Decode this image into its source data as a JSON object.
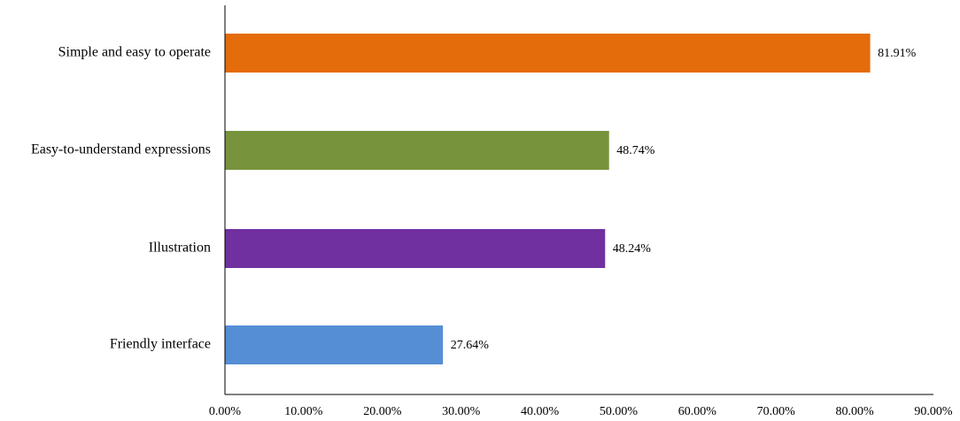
{
  "chart_data": {
    "type": "bar",
    "orientation": "horizontal",
    "categories": [
      "Simple and easy to operate",
      "Easy-to-understand expressions",
      "Illustration",
      "Friendly interface"
    ],
    "values": [
      81.91,
      48.74,
      48.24,
      27.64
    ],
    "value_labels": [
      "81.91%",
      "48.74%",
      "48.24%",
      "27.64%"
    ],
    "colors": [
      "#E46C0A",
      "#77933C",
      "#7030A0",
      "#558ED5"
    ],
    "xlim": [
      0,
      90
    ],
    "xticks": [
      0,
      10,
      20,
      30,
      40,
      50,
      60,
      70,
      80,
      90
    ],
    "xtick_labels": [
      "0.00%",
      "10.00%",
      "20.00%",
      "30.00%",
      "40.00%",
      "50.00%",
      "60.00%",
      "70.00%",
      "80.00%",
      "90.00%"
    ],
    "grid": false,
    "legend": false,
    "title": "",
    "xlabel": "",
    "ylabel": ""
  }
}
